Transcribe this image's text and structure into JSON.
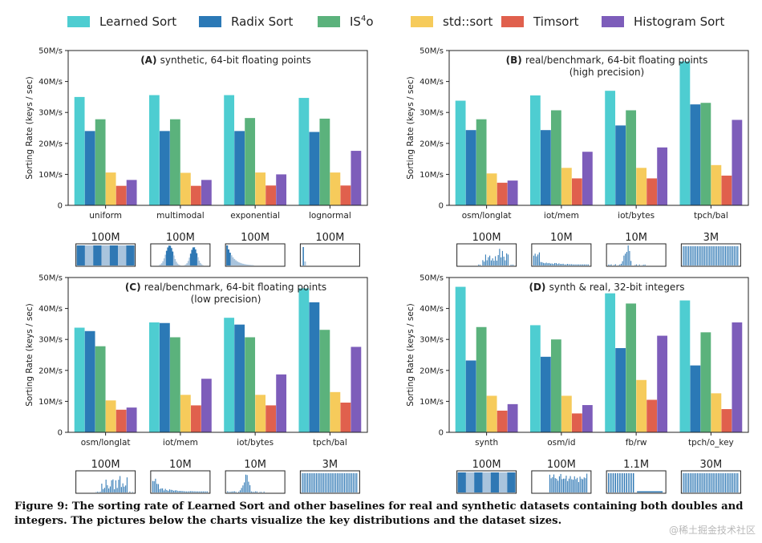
{
  "legend": [
    {
      "label": "Learned Sort",
      "color": "#4ecdd1"
    },
    {
      "label": "Radix Sort",
      "color": "#2b79b6"
    },
    {
      "label": "IS4o",
      "color": "#5bb27c"
    },
    {
      "label": "std::sort",
      "color": "#f6cb5b"
    },
    {
      "label": "Timsort",
      "color": "#e0604d"
    },
    {
      "label": "Histogram Sort",
      "color": "#7d5dba"
    }
  ],
  "chart_data": [
    {
      "type": "bar",
      "title": "(A) synthetic, 64-bit floating points",
      "subtitle": "",
      "ylabel": "Sorting Rate (keys / sec)",
      "ylim": [
        0,
        50
      ],
      "yticks": [
        "0",
        "10M/s",
        "20M/s",
        "30M/s",
        "40M/s",
        "50M/s"
      ],
      "categories": [
        "uniform",
        "multimodal",
        "exponential",
        "lognormal"
      ],
      "sizes": [
        "100M",
        "100M",
        "100M",
        "100M"
      ],
      "dist": [
        "uniform",
        "multimodal",
        "exponential",
        "lognormal"
      ],
      "series": [
        {
          "name": "Learned Sort",
          "values": [
            35,
            35.6,
            35.6,
            34.7
          ]
        },
        {
          "name": "Radix Sort",
          "values": [
            24,
            24,
            24,
            23.7
          ]
        },
        {
          "name": "IS4o",
          "values": [
            27.8,
            27.8,
            28.2,
            28
          ]
        },
        {
          "name": "std::sort",
          "values": [
            10.6,
            10.5,
            10.6,
            10.6
          ]
        },
        {
          "name": "Timsort",
          "values": [
            6.3,
            6.3,
            6.4,
            6.4
          ]
        },
        {
          "name": "Histogram Sort",
          "values": [
            8.2,
            8.2,
            10,
            17.6
          ]
        }
      ]
    },
    {
      "type": "bar",
      "title": "(B) real/benchmark, 64-bit floating points",
      "subtitle": "(high precision)",
      "ylabel": "Sorting Rate (keys / sec)",
      "ylim": [
        0,
        50
      ],
      "yticks": [
        "0",
        "10M/s",
        "20M/s",
        "30M/s",
        "40M/s",
        "50M/s"
      ],
      "categories": [
        "osm/longlat",
        "iot/mem",
        "iot/bytes",
        "tpch/bal"
      ],
      "sizes": [
        "100M",
        "10M",
        "10M",
        "3M"
      ],
      "dist": [
        "osm",
        "iotmem",
        "iotbytes",
        "tpch"
      ],
      "series": [
        {
          "name": "Learned Sort",
          "values": [
            33.8,
            35.5,
            37,
            46.5
          ]
        },
        {
          "name": "Radix Sort",
          "values": [
            24.3,
            24.3,
            25.8,
            32.6
          ]
        },
        {
          "name": "IS4o",
          "values": [
            27.8,
            30.7,
            30.7,
            33.1
          ]
        },
        {
          "name": "std::sort",
          "values": [
            10.3,
            12.1,
            12.1,
            13
          ]
        },
        {
          "name": "Timsort",
          "values": [
            7.3,
            8.7,
            8.7,
            9.6
          ]
        },
        {
          "name": "Histogram Sort",
          "values": [
            8,
            17.3,
            18.7,
            27.6
          ]
        }
      ]
    },
    {
      "type": "bar",
      "title": "(C) real/benchmark, 64-bit floating points",
      "subtitle": "(low precision)",
      "ylabel": "Sorting Rate (keys / sec)",
      "ylim": [
        0,
        50
      ],
      "yticks": [
        "0",
        "10M/s",
        "20M/s",
        "30M/s",
        "40M/s",
        "50M/s"
      ],
      "categories": [
        "osm/longlat",
        "iot/mem",
        "iot/bytes",
        "tpch/bal"
      ],
      "sizes": [
        "100M",
        "10M",
        "10M",
        "3M"
      ],
      "dist": [
        "osm",
        "iotmem",
        "iotbytes",
        "tpch"
      ],
      "series": [
        {
          "name": "Learned Sort",
          "values": [
            33.8,
            35.5,
            37,
            46.5
          ]
        },
        {
          "name": "Radix Sort",
          "values": [
            32.7,
            35.3,
            34.8,
            42
          ]
        },
        {
          "name": "IS4o",
          "values": [
            27.8,
            30.7,
            30.7,
            33.1
          ]
        },
        {
          "name": "std::sort",
          "values": [
            10.3,
            12.1,
            12.1,
            13
          ]
        },
        {
          "name": "Timsort",
          "values": [
            7.3,
            8.7,
            8.7,
            9.6
          ]
        },
        {
          "name": "Histogram Sort",
          "values": [
            8,
            17.3,
            18.7,
            27.6
          ]
        }
      ]
    },
    {
      "type": "bar",
      "title": "(D) synth & real, 32-bit integers",
      "subtitle": "",
      "ylabel": "Sorting Rate (keys / sec)",
      "ylim": [
        0,
        50
      ],
      "yticks": [
        "0",
        "10M/s",
        "20M/s",
        "30M/s",
        "40M/s",
        "50M/s"
      ],
      "categories": [
        "synth",
        "osm/id",
        "fb/rw",
        "tpch/o_key"
      ],
      "sizes": [
        "100M",
        "100M",
        "1.1M",
        "30M"
      ],
      "dist": [
        "uniform",
        "osmid",
        "fbrw",
        "tpch"
      ],
      "series": [
        {
          "name": "Learned Sort",
          "values": [
            47,
            34.6,
            44.9,
            42.6
          ]
        },
        {
          "name": "Radix Sort",
          "values": [
            23.2,
            24.4,
            27.2,
            21.6
          ]
        },
        {
          "name": "IS4o",
          "values": [
            34,
            30,
            41.6,
            32.3
          ]
        },
        {
          "name": "std::sort",
          "values": [
            11.8,
            11.8,
            16.9,
            12.6
          ]
        },
        {
          "name": "Timsort",
          "values": [
            7,
            6.1,
            10.5,
            7.5
          ]
        },
        {
          "name": "Histogram Sort",
          "values": [
            9.1,
            8.8,
            31.2,
            35.5
          ]
        }
      ]
    }
  ],
  "caption": "Figure 9: The sorting rate of Learned Sort and other baselines for real and synthetic datasets containing both doubles and integers. The pictures below the charts visualize the key distributions and the dataset sizes.",
  "watermark": "@稀土掘金技术社区"
}
